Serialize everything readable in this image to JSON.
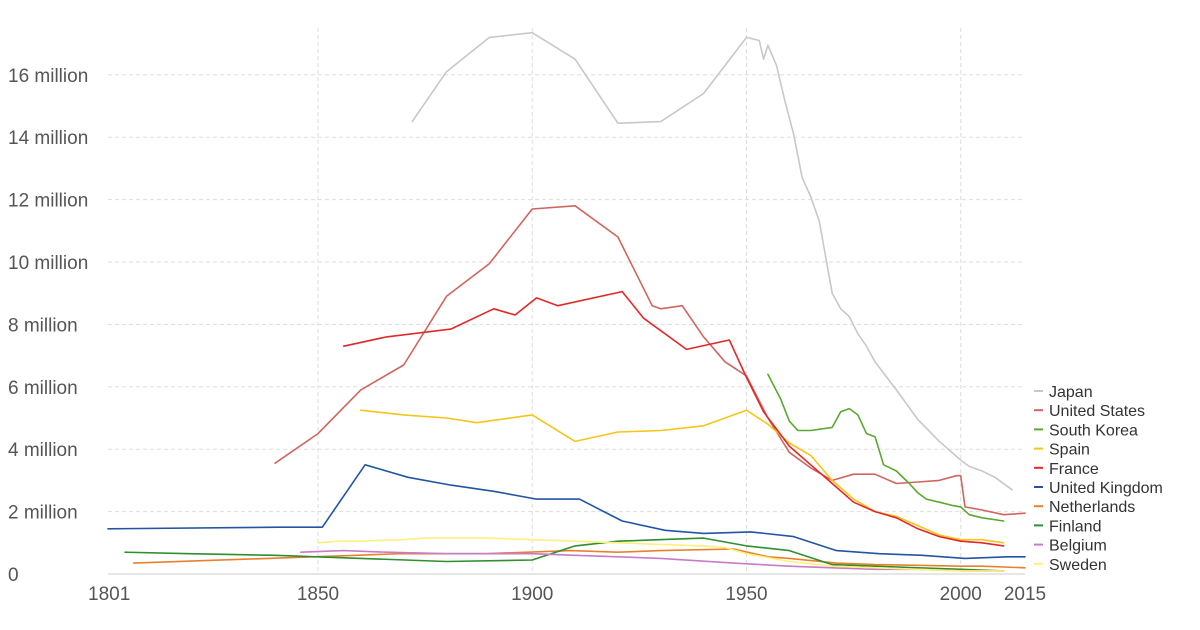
{
  "chart_data": {
    "type": "line",
    "title": "",
    "xlabel": "",
    "ylabel": "",
    "xlim": [
      1801,
      2015
    ],
    "ylim": [
      0,
      17500000
    ],
    "grid": true,
    "legend_position": "right",
    "x_ticks": [
      1801,
      1850,
      1900,
      1950,
      2000,
      2015
    ],
    "x_tick_labels": [
      "1801",
      "1850",
      "1900",
      "1950",
      "2000",
      "2015"
    ],
    "y_ticks": [
      0,
      2000000,
      4000000,
      6000000,
      8000000,
      10000000,
      12000000,
      14000000,
      16000000
    ],
    "y_tick_labels": [
      "0",
      "2 million",
      "4 million",
      "6 million",
      "8 million",
      "10 million",
      "12 million",
      "14 million",
      "16 million"
    ],
    "series": [
      {
        "name": "Japan",
        "color": "#c8c8c8",
        "points": [
          [
            1872,
            14500000
          ],
          [
            1880,
            16100000
          ],
          [
            1890,
            17200000
          ],
          [
            1900,
            17350000
          ],
          [
            1910,
            16500000
          ],
          [
            1920,
            14450000
          ],
          [
            1930,
            14500000
          ],
          [
            1940,
            15400000
          ],
          [
            1950,
            17200000
          ],
          [
            1953,
            17100000
          ],
          [
            1954,
            16500000
          ],
          [
            1955,
            16950000
          ],
          [
            1957,
            16300000
          ],
          [
            1959,
            15150000
          ],
          [
            1961,
            14100000
          ],
          [
            1963,
            12700000
          ],
          [
            1965,
            12100000
          ],
          [
            1967,
            11300000
          ],
          [
            1970,
            9000000
          ],
          [
            1972,
            8500000
          ],
          [
            1974,
            8250000
          ],
          [
            1976,
            7700000
          ],
          [
            1978,
            7300000
          ],
          [
            1980,
            6800000
          ],
          [
            1985,
            5900000
          ],
          [
            1990,
            4950000
          ],
          [
            1995,
            4250000
          ],
          [
            2000,
            3650000
          ],
          [
            2002,
            3450000
          ],
          [
            2005,
            3300000
          ],
          [
            2008,
            3100000
          ],
          [
            2012,
            2700000
          ]
        ]
      },
      {
        "name": "United States",
        "color": "#d0655f",
        "points": [
          [
            1840,
            3550000
          ],
          [
            1850,
            4500000
          ],
          [
            1860,
            5900000
          ],
          [
            1870,
            6700000
          ],
          [
            1880,
            8900000
          ],
          [
            1890,
            9950000
          ],
          [
            1900,
            11700000
          ],
          [
            1910,
            11800000
          ],
          [
            1920,
            10800000
          ],
          [
            1928,
            8600000
          ],
          [
            1930,
            8500000
          ],
          [
            1935,
            8600000
          ],
          [
            1940,
            7600000
          ],
          [
            1945,
            6800000
          ],
          [
            1950,
            6350000
          ],
          [
            1955,
            5000000
          ],
          [
            1960,
            3900000
          ],
          [
            1965,
            3400000
          ],
          [
            1970,
            3000000
          ],
          [
            1975,
            3200000
          ],
          [
            1980,
            3200000
          ],
          [
            1985,
            2900000
          ],
          [
            1990,
            2950000
          ],
          [
            1995,
            3000000
          ],
          [
            1999,
            3150000
          ],
          [
            2000,
            3150000
          ],
          [
            2001,
            2150000
          ],
          [
            2005,
            2050000
          ],
          [
            2010,
            1900000
          ],
          [
            2015,
            1950000
          ]
        ]
      },
      {
        "name": "South Korea",
        "color": "#5aa832",
        "points": [
          [
            1955,
            6400000
          ],
          [
            1958,
            5600000
          ],
          [
            1960,
            4900000
          ],
          [
            1962,
            4600000
          ],
          [
            1965,
            4600000
          ],
          [
            1970,
            4700000
          ],
          [
            1972,
            5200000
          ],
          [
            1974,
            5300000
          ],
          [
            1976,
            5100000
          ],
          [
            1978,
            4500000
          ],
          [
            1980,
            4400000
          ],
          [
            1982,
            3500000
          ],
          [
            1985,
            3300000
          ],
          [
            1988,
            2900000
          ],
          [
            1990,
            2600000
          ],
          [
            1992,
            2400000
          ],
          [
            1995,
            2300000
          ],
          [
            1998,
            2200000
          ],
          [
            2000,
            2150000
          ],
          [
            2002,
            1900000
          ],
          [
            2005,
            1800000
          ],
          [
            2010,
            1700000
          ]
        ]
      },
      {
        "name": "Spain",
        "color": "#f5c619",
        "points": [
          [
            1860,
            5250000
          ],
          [
            1870,
            5100000
          ],
          [
            1880,
            5000000
          ],
          [
            1887,
            4850000
          ],
          [
            1900,
            5100000
          ],
          [
            1910,
            4250000
          ],
          [
            1920,
            4550000
          ],
          [
            1930,
            4600000
          ],
          [
            1940,
            4750000
          ],
          [
            1950,
            5250000
          ],
          [
            1955,
            4800000
          ],
          [
            1960,
            4200000
          ],
          [
            1965,
            3800000
          ],
          [
            1970,
            3000000
          ],
          [
            1975,
            2400000
          ],
          [
            1980,
            2000000
          ],
          [
            1985,
            1850000
          ],
          [
            1990,
            1550000
          ],
          [
            1995,
            1250000
          ],
          [
            2000,
            1100000
          ],
          [
            2005,
            1100000
          ],
          [
            2010,
            1000000
          ]
        ]
      },
      {
        "name": "France",
        "color": "#e02a28",
        "points": [
          [
            1856,
            7300000
          ],
          [
            1866,
            7600000
          ],
          [
            1881,
            7850000
          ],
          [
            1891,
            8500000
          ],
          [
            1896,
            8300000
          ],
          [
            1901,
            8850000
          ],
          [
            1906,
            8600000
          ],
          [
            1921,
            9050000
          ],
          [
            1926,
            8200000
          ],
          [
            1936,
            7200000
          ],
          [
            1946,
            7500000
          ],
          [
            1950,
            6300000
          ],
          [
            1954,
            5200000
          ],
          [
            1960,
            4100000
          ],
          [
            1965,
            3500000
          ],
          [
            1970,
            2900000
          ],
          [
            1975,
            2300000
          ],
          [
            1980,
            2000000
          ],
          [
            1985,
            1800000
          ],
          [
            1990,
            1450000
          ],
          [
            1995,
            1200000
          ],
          [
            2000,
            1050000
          ],
          [
            2005,
            1000000
          ],
          [
            2010,
            900000
          ]
        ]
      },
      {
        "name": "United Kingdom",
        "color": "#2255a4",
        "points": [
          [
            1801,
            1450000
          ],
          [
            1841,
            1500000
          ],
          [
            1851,
            1500000
          ],
          [
            1861,
            3500000
          ],
          [
            1871,
            3100000
          ],
          [
            1881,
            2850000
          ],
          [
            1891,
            2650000
          ],
          [
            1901,
            2400000
          ],
          [
            1911,
            2400000
          ],
          [
            1921,
            1700000
          ],
          [
            1931,
            1400000
          ],
          [
            1940,
            1300000
          ],
          [
            1951,
            1350000
          ],
          [
            1961,
            1200000
          ],
          [
            1971,
            750000
          ],
          [
            1981,
            650000
          ],
          [
            1991,
            600000
          ],
          [
            2001,
            500000
          ],
          [
            2011,
            550000
          ],
          [
            2015,
            550000
          ]
        ]
      },
      {
        "name": "Netherlands",
        "color": "#e8812d",
        "points": [
          [
            1807,
            350000
          ],
          [
            1849,
            550000
          ],
          [
            1859,
            600000
          ],
          [
            1869,
            650000
          ],
          [
            1889,
            650000
          ],
          [
            1899,
            700000
          ],
          [
            1909,
            750000
          ],
          [
            1920,
            700000
          ],
          [
            1930,
            750000
          ],
          [
            1947,
            800000
          ],
          [
            1955,
            550000
          ],
          [
            1960,
            500000
          ],
          [
            1971,
            350000
          ],
          [
            1980,
            300000
          ],
          [
            1990,
            280000
          ],
          [
            2000,
            250000
          ],
          [
            2005,
            250000
          ],
          [
            2015,
            200000
          ]
        ]
      },
      {
        "name": "Finland",
        "color": "#2f8f2f",
        "points": [
          [
            1805,
            700000
          ],
          [
            1820,
            650000
          ],
          [
            1840,
            600000
          ],
          [
            1860,
            500000
          ],
          [
            1880,
            400000
          ],
          [
            1900,
            450000
          ],
          [
            1910,
            900000
          ],
          [
            1920,
            1050000
          ],
          [
            1940,
            1150000
          ],
          [
            1950,
            900000
          ],
          [
            1960,
            750000
          ],
          [
            1970,
            300000
          ],
          [
            1980,
            250000
          ],
          [
            1990,
            200000
          ],
          [
            2000,
            150000
          ],
          [
            2010,
            100000
          ]
        ]
      },
      {
        "name": "Belgium",
        "color": "#c77bc9",
        "points": [
          [
            1846,
            700000
          ],
          [
            1856,
            750000
          ],
          [
            1866,
            700000
          ],
          [
            1880,
            650000
          ],
          [
            1890,
            650000
          ],
          [
            1900,
            650000
          ],
          [
            1910,
            600000
          ],
          [
            1920,
            550000
          ],
          [
            1930,
            500000
          ],
          [
            1947,
            350000
          ],
          [
            1960,
            250000
          ],
          [
            1970,
            200000
          ],
          [
            1980,
            150000
          ],
          [
            1990,
            150000
          ],
          [
            2001,
            100000
          ],
          [
            2010,
            100000
          ]
        ]
      },
      {
        "name": "Sweden",
        "color": "#fff07a",
        "points": [
          [
            1850,
            1000000
          ],
          [
            1855,
            1050000
          ],
          [
            1860,
            1050000
          ],
          [
            1865,
            1080000
          ],
          [
            1870,
            1100000
          ],
          [
            1875,
            1150000
          ],
          [
            1880,
            1150000
          ],
          [
            1890,
            1150000
          ],
          [
            1900,
            1100000
          ],
          [
            1910,
            1050000
          ],
          [
            1920,
            1000000
          ],
          [
            1930,
            950000
          ],
          [
            1940,
            900000
          ],
          [
            1945,
            850000
          ],
          [
            1950,
            650000
          ],
          [
            1960,
            400000
          ],
          [
            1970,
            250000
          ],
          [
            1980,
            200000
          ],
          [
            1990,
            150000
          ],
          [
            2000,
            100000
          ],
          [
            2010,
            100000
          ]
        ]
      }
    ]
  }
}
